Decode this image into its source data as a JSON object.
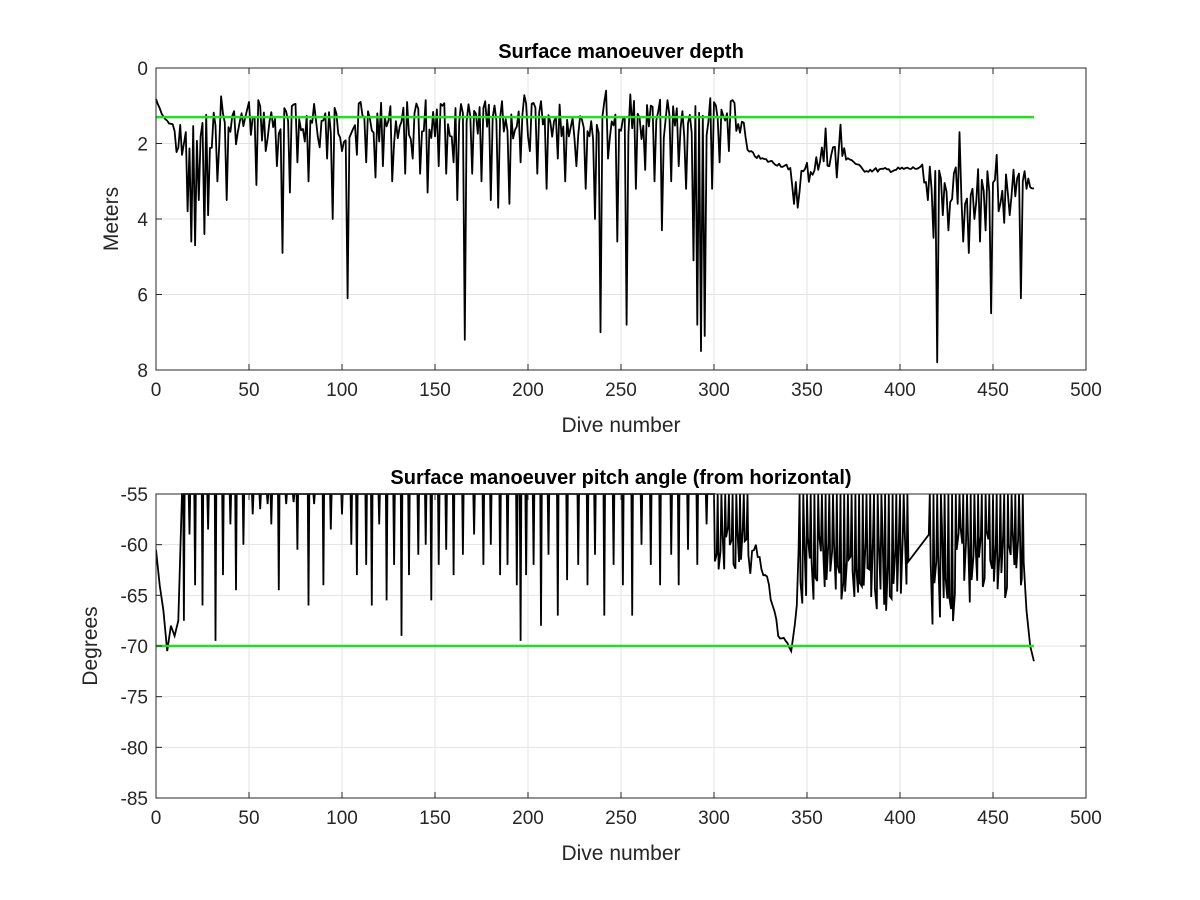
{
  "chart_data": [
    {
      "type": "line",
      "title": "Surface manoeuver depth",
      "xlabel": "Dive number",
      "ylabel": "Meters",
      "xlim": [
        0,
        500
      ],
      "ylim": [
        0,
        8
      ],
      "y_reversed": true,
      "grid": true,
      "xticks": [
        0,
        50,
        100,
        150,
        200,
        250,
        300,
        350,
        400,
        450,
        500
      ],
      "yticks": [
        0,
        2,
        4,
        6,
        8
      ],
      "colors": {
        "data": "#000000",
        "reference": "#22dd22"
      },
      "reference_line": {
        "y": 1.3,
        "x_range": [
          0,
          472
        ]
      },
      "base_trend": [
        [
          0,
          0.8
        ],
        [
          3,
          1.2
        ],
        [
          6,
          1.4
        ],
        [
          10,
          1.5
        ],
        [
          15,
          1.6
        ],
        [
          20,
          1.5
        ],
        [
          25,
          1.4
        ],
        [
          30,
          1.2
        ],
        [
          40,
          1.1
        ],
        [
          60,
          1.05
        ],
        [
          100,
          1.05
        ],
        [
          150,
          1.05
        ],
        [
          190,
          1.0
        ],
        [
          240,
          0.95
        ],
        [
          300,
          0.95
        ],
        [
          312,
          1.0
        ],
        [
          316,
          1.5
        ],
        [
          318,
          2.2
        ],
        [
          325,
          2.4
        ],
        [
          335,
          2.55
        ],
        [
          345,
          2.7
        ],
        [
          352,
          2.4
        ],
        [
          360,
          2.0
        ],
        [
          368,
          1.9
        ],
        [
          372,
          2.35
        ],
        [
          380,
          2.7
        ],
        [
          395,
          2.7
        ],
        [
          410,
          2.65
        ],
        [
          418,
          2.75
        ],
        [
          430,
          2.75
        ],
        [
          450,
          2.8
        ],
        [
          472,
          2.8
        ]
      ],
      "spikes": [
        [
          14,
          2.3
        ],
        [
          17,
          3.8
        ],
        [
          19,
          4.6
        ],
        [
          21,
          4.7
        ],
        [
          23,
          3.5
        ],
        [
          26,
          4.4
        ],
        [
          28,
          3.9
        ],
        [
          33,
          3.0
        ],
        [
          38,
          3.5
        ],
        [
          44,
          1.7
        ],
        [
          54,
          3.1
        ],
        [
          59,
          2.2
        ],
        [
          65,
          2.6
        ],
        [
          68,
          4.9
        ],
        [
          72,
          3.3
        ],
        [
          76,
          2.5
        ],
        [
          82,
          3.0
        ],
        [
          88,
          2.1
        ],
        [
          92,
          2.4
        ],
        [
          95,
          4.0
        ],
        [
          100,
          2.2
        ],
        [
          103,
          6.1
        ],
        [
          108,
          2.3
        ],
        [
          113,
          2.5
        ],
        [
          118,
          2.9
        ],
        [
          122,
          2.6
        ],
        [
          127,
          3.0
        ],
        [
          134,
          2.8
        ],
        [
          138,
          2.4
        ],
        [
          142,
          2.8
        ],
        [
          146,
          3.3
        ],
        [
          152,
          2.6
        ],
        [
          156,
          2.8
        ],
        [
          160,
          2.5
        ],
        [
          162,
          3.5
        ],
        [
          166,
          7.2
        ],
        [
          170,
          2.8
        ],
        [
          175,
          3.0
        ],
        [
          180,
          3.5
        ],
        [
          184,
          3.7
        ],
        [
          190,
          3.6
        ],
        [
          196,
          2.5
        ],
        [
          201,
          2.2
        ],
        [
          205,
          2.8
        ],
        [
          210,
          3.2
        ],
        [
          216,
          2.4
        ],
        [
          220,
          3.0
        ],
        [
          226,
          2.6
        ],
        [
          231,
          3.2
        ],
        [
          236,
          4.0
        ],
        [
          239,
          7.0
        ],
        [
          243,
          2.4
        ],
        [
          248,
          4.6
        ],
        [
          253,
          6.8
        ],
        [
          258,
          3.2
        ],
        [
          263,
          2.7
        ],
        [
          268,
          3.0
        ],
        [
          272,
          4.3
        ],
        [
          277,
          3.0
        ],
        [
          281,
          2.6
        ],
        [
          285,
          3.2
        ],
        [
          289,
          5.1
        ],
        [
          291,
          6.8
        ],
        [
          293,
          7.5
        ],
        [
          295,
          7.1
        ],
        [
          299,
          3.2
        ],
        [
          303,
          2.5
        ],
        [
          308,
          2.2
        ],
        [
          343,
          3.6
        ],
        [
          345,
          3.7
        ],
        [
          356,
          2.7
        ],
        [
          362,
          2.6
        ],
        [
          366,
          2.9
        ],
        [
          415,
          3.5
        ],
        [
          418,
          4.5
        ],
        [
          420,
          7.8
        ],
        [
          423,
          3.9
        ],
        [
          426,
          4.3
        ],
        [
          431,
          3.6
        ],
        [
          434,
          4.6
        ],
        [
          437,
          4.9
        ],
        [
          440,
          4.0
        ],
        [
          443,
          4.6
        ],
        [
          446,
          4.3
        ],
        [
          449,
          6.5
        ],
        [
          453,
          3.8
        ],
        [
          456,
          4.1
        ],
        [
          459,
          3.9
        ],
        [
          462,
          3.4
        ],
        [
          465,
          6.1
        ],
        [
          468,
          3.2
        ]
      ],
      "upspikes": [
        [
          35,
          0.75
        ],
        [
          50,
          0.9
        ],
        [
          55,
          0.85
        ],
        [
          75,
          0.95
        ],
        [
          85,
          0.95
        ],
        [
          110,
          0.9
        ],
        [
          135,
          0.9
        ],
        [
          145,
          0.85
        ],
        [
          175,
          0.8
        ],
        [
          198,
          0.72
        ],
        [
          205,
          0.7
        ],
        [
          220,
          0.72
        ],
        [
          242,
          0.6
        ],
        [
          255,
          0.7
        ],
        [
          268,
          0.75
        ],
        [
          285,
          0.78
        ],
        [
          298,
          0.8
        ],
        [
          310,
          0.85
        ],
        [
          360,
          1.6
        ],
        [
          368,
          1.5
        ],
        [
          432,
          1.7
        ],
        [
          452,
          2.3
        ]
      ]
    },
    {
      "type": "line",
      "title": "Surface manoeuver pitch angle (from horizontal)",
      "xlabel": "Dive number",
      "ylabel": "Degrees",
      "xlim": [
        0,
        500
      ],
      "ylim": [
        -85,
        -55
      ],
      "grid": true,
      "xticks": [
        0,
        50,
        100,
        150,
        200,
        250,
        300,
        350,
        400,
        450,
        500
      ],
      "yticks": [
        -55,
        -60,
        -65,
        -70,
        -75,
        -80,
        -85
      ],
      "colors": {
        "data": "#000000",
        "reference": "#22dd22"
      },
      "reference_line": {
        "y": -70,
        "x_range": [
          0,
          472
        ]
      },
      "start_segment": [
        [
          0,
          -60.5
        ],
        [
          2,
          -64
        ],
        [
          4,
          -66.5
        ],
        [
          6,
          -70.5
        ],
        [
          8,
          -68
        ],
        [
          10,
          -69
        ],
        [
          12,
          -67.5
        ],
        [
          14,
          -55
        ]
      ],
      "drops": [
        [
          15,
          -67.5
        ],
        [
          18,
          -59
        ],
        [
          21,
          -64
        ],
        [
          25,
          -66
        ],
        [
          28,
          -58.5
        ],
        [
          32,
          -69.5
        ],
        [
          36,
          -63
        ],
        [
          40,
          -58
        ],
        [
          43,
          -64.5
        ],
        [
          47,
          -60
        ],
        [
          52,
          -57
        ],
        [
          56,
          -56.5
        ],
        [
          60,
          -56
        ],
        [
          62,
          -58
        ],
        [
          66,
          -64.5
        ],
        [
          70,
          -56
        ],
        [
          74,
          -55.8
        ],
        [
          76,
          -60.5
        ],
        [
          82,
          -66
        ],
        [
          85,
          -56
        ],
        [
          90,
          -64
        ],
        [
          94,
          -58.5
        ],
        [
          100,
          -57
        ],
        [
          105,
          -60
        ],
        [
          108,
          -63
        ],
        [
          113,
          -62
        ],
        [
          116,
          -66
        ],
        [
          120,
          -58
        ],
        [
          124,
          -65.5
        ],
        [
          128,
          -62
        ],
        [
          132,
          -69
        ],
        [
          136,
          -63
        ],
        [
          141,
          -61
        ],
        [
          145,
          -60
        ],
        [
          148,
          -65.5
        ],
        [
          152,
          -62
        ],
        [
          156,
          -60.5
        ],
        [
          160,
          -63
        ],
        [
          165,
          -61
        ],
        [
          171,
          -59
        ],
        [
          176,
          -62
        ],
        [
          180,
          -60
        ],
        [
          185,
          -63
        ],
        [
          189,
          -62
        ],
        [
          194,
          -64
        ],
        [
          196,
          -69.5
        ],
        [
          199,
          -63
        ],
        [
          203,
          -62
        ],
        [
          207,
          -68
        ],
        [
          211,
          -61
        ],
        [
          216,
          -67
        ],
        [
          221,
          -63.5
        ],
        [
          227,
          -62
        ],
        [
          232,
          -64
        ],
        [
          236,
          -61
        ],
        [
          241,
          -67
        ],
        [
          246,
          -62
        ],
        [
          251,
          -64
        ],
        [
          256,
          -67
        ],
        [
          261,
          -60
        ],
        [
          266,
          -62
        ],
        [
          271,
          -64
        ],
        [
          277,
          -61
        ],
        [
          281,
          -64
        ],
        [
          286,
          -60.5
        ],
        [
          291,
          -62
        ],
        [
          296,
          -58
        ]
      ],
      "dense_regions": [
        [
          300,
          345
        ],
        [
          345,
          380
        ],
        [
          380,
          405
        ],
        [
          415,
          468
        ]
      ],
      "trough": [
        [
          322,
          -60
        ],
        [
          327,
          -63
        ],
        [
          331,
          -66
        ],
        [
          334,
          -69
        ],
        [
          338,
          -69.5
        ],
        [
          341,
          -70.5
        ],
        [
          344,
          -66
        ]
      ],
      "end_segment": [
        [
          465,
          -64
        ],
        [
          468,
          -66.5
        ],
        [
          470,
          -70
        ],
        [
          472,
          -71.5
        ]
      ]
    }
  ]
}
